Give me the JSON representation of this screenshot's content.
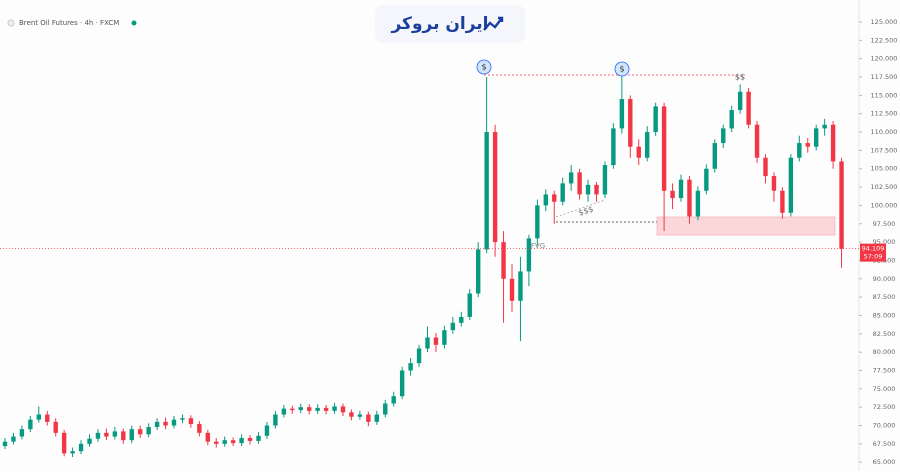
{
  "chart_data": {
    "type": "candlestick",
    "title": "Brent Oil Futures · 4h · FXCM",
    "brand": "ایران بروکر",
    "annotations": [
      "$",
      "$",
      "$$",
      "$$$",
      "FVG"
    ],
    "up_color": "#089981",
    "down_color": "#f23645",
    "last_price": 94.109,
    "countdown": "57:09",
    "ylim": [
      63.8,
      128
    ],
    "yticks": [
      {
        "value": 65,
        "label": "65.000"
      },
      {
        "value": 67.5,
        "label": "67.500"
      },
      {
        "value": 70,
        "label": "70.000"
      },
      {
        "value": 72.5,
        "label": "72.500"
      },
      {
        "value": 75,
        "label": "75.000"
      },
      {
        "value": 77.5,
        "label": "77.500"
      },
      {
        "value": 80,
        "label": "80.000"
      },
      {
        "value": 82.5,
        "label": "82.500"
      },
      {
        "value": 85,
        "label": "85.000"
      },
      {
        "value": 87.5,
        "label": "87.500"
      },
      {
        "value": 90,
        "label": "90.000"
      },
      {
        "value": 92.5,
        "label": "92.500"
      },
      {
        "value": 95,
        "label": "95.000"
      },
      {
        "value": 97.5,
        "label": "97.500"
      },
      {
        "value": 100,
        "label": "100.000"
      },
      {
        "value": 102.5,
        "label": "102.500"
      },
      {
        "value": 105,
        "label": "105.000"
      },
      {
        "value": 107.5,
        "label": "107.500"
      },
      {
        "value": 110,
        "label": "110.000"
      },
      {
        "value": 112.5,
        "label": "112.500"
      },
      {
        "value": 115,
        "label": "115.000"
      },
      {
        "value": 117.5,
        "label": "117.500"
      },
      {
        "value": 120,
        "label": "120.000"
      },
      {
        "value": 122.5,
        "label": "122.500"
      },
      {
        "value": 125,
        "label": "125.000"
      }
    ],
    "open": [
      67.2,
      67.8,
      68.5,
      69.5,
      70.8,
      71.5,
      70.5,
      69.0,
      66.2,
      66.5,
      67.5,
      68.2,
      69.0,
      68.5,
      69.2,
      68.0,
      69.5,
      68.8,
      69.8,
      70.5,
      70.0,
      70.8,
      71.0,
      70.2,
      69.0,
      67.8,
      67.5,
      68.0,
      67.6,
      68.3,
      67.9,
      68.6,
      70.0,
      71.5,
      72.3,
      72.1,
      72.5,
      72.0,
      72.4,
      72.0,
      72.6,
      71.8,
      71.2,
      71.5,
      70.5,
      71.5,
      73.0,
      74.0,
      77.5,
      78.5,
      80.5,
      82.0,
      81.0,
      83.0,
      84.0,
      84.8,
      88.0,
      94.0,
      110.0,
      95.0,
      90.0,
      87.0,
      91.0,
      95.5,
      100.0,
      101.5,
      100.5,
      103.0,
      104.5,
      101.5,
      102.8,
      101.5,
      105.5,
      110.5,
      114.5,
      108.0,
      106.5,
      110.0,
      113.5,
      102.0,
      101.0,
      103.5,
      98.5,
      102.0,
      105.0,
      108.5,
      110.5,
      113.0,
      115.5,
      111.0,
      106.5,
      104.0,
      102.0,
      99.0,
      106.5,
      108.5,
      108.0,
      110.5,
      111.0,
      106.0
    ],
    "high": [
      68.3,
      69.0,
      70.0,
      71.3,
      72.6,
      72.0,
      71.0,
      69.4,
      67.0,
      68.0,
      68.8,
      69.5,
      69.6,
      69.8,
      69.6,
      70.0,
      70.0,
      70.3,
      71.0,
      71.1,
      71.3,
      71.5,
      71.4,
      70.6,
      69.4,
      68.3,
      68.5,
      68.4,
      68.8,
      68.7,
      69.1,
      70.5,
      72.0,
      72.8,
      72.7,
      73.0,
      72.9,
      72.9,
      72.8,
      73.1,
      73.0,
      72.2,
      72.0,
      71.9,
      72.0,
      73.5,
      74.6,
      78.0,
      79.2,
      81.0,
      83.5,
      82.6,
      83.6,
      84.8,
      85.5,
      88.6,
      95.0,
      117.5,
      111.0,
      96.5,
      92.0,
      93.0,
      96.0,
      100.8,
      102.2,
      102.0,
      103.8,
      105.5,
      105.0,
      103.5,
      103.2,
      106.0,
      111.2,
      117.6,
      115.0,
      109.0,
      110.8,
      114.0,
      114.0,
      103.0,
      104.2,
      104.0,
      102.6,
      105.6,
      109.0,
      111.0,
      113.6,
      116.5,
      116.0,
      111.5,
      107.0,
      104.5,
      102.5,
      107.0,
      109.5,
      109.2,
      111.0,
      111.8,
      111.5,
      106.5
    ],
    "low": [
      66.8,
      67.4,
      68.1,
      69.1,
      70.4,
      70.0,
      68.5,
      65.8,
      65.7,
      66.1,
      67.1,
      67.8,
      68.0,
      68.1,
      67.5,
      67.6,
      68.3,
      68.4,
      69.4,
      69.5,
      69.6,
      70.3,
      69.7,
      68.5,
      67.3,
      67.0,
      67.1,
      67.2,
      67.2,
      67.4,
      67.5,
      68.2,
      69.6,
      71.1,
      71.6,
      71.7,
      71.5,
      71.6,
      71.5,
      71.6,
      71.3,
      70.7,
      70.8,
      69.9,
      70.1,
      71.1,
      72.6,
      73.6,
      76.8,
      78.0,
      80.0,
      80.0,
      80.5,
      82.5,
      83.5,
      84.4,
      87.5,
      93.5,
      93.0,
      84.0,
      85.5,
      81.5,
      89.0,
      94.5,
      99.2,
      97.5,
      100.0,
      102.0,
      100.8,
      100.5,
      100.5,
      101.0,
      105.0,
      109.8,
      106.5,
      105.5,
      106.0,
      109.5,
      96.5,
      99.5,
      100.5,
      97.5,
      98.0,
      101.5,
      104.5,
      107.8,
      110.0,
      112.5,
      110.5,
      105.8,
      103.0,
      100.5,
      98.2,
      98.5,
      106.0,
      107.2,
      107.5,
      109.5,
      105.0,
      91.5
    ],
    "close": [
      67.8,
      68.5,
      69.5,
      70.8,
      71.5,
      70.5,
      69.0,
      66.2,
      66.5,
      67.5,
      68.2,
      69.0,
      68.5,
      69.2,
      68.0,
      69.5,
      68.8,
      69.8,
      70.5,
      70.0,
      70.8,
      71.0,
      70.2,
      69.0,
      67.8,
      67.5,
      68.0,
      67.6,
      68.3,
      67.9,
      68.6,
      70.0,
      71.5,
      72.3,
      72.1,
      72.5,
      72.0,
      72.4,
      72.0,
      72.6,
      71.8,
      71.2,
      71.5,
      70.5,
      71.5,
      73.0,
      74.0,
      77.5,
      78.5,
      80.5,
      82.0,
      81.0,
      83.0,
      84.0,
      84.8,
      88.0,
      94.0,
      110.0,
      95.0,
      90.0,
      87.0,
      91.0,
      95.5,
      100.0,
      101.5,
      100.5,
      103.0,
      104.5,
      101.5,
      102.8,
      101.5,
      105.5,
      110.5,
      114.5,
      108.0,
      106.5,
      110.0,
      113.5,
      102.0,
      101.0,
      103.5,
      98.5,
      102.0,
      105.0,
      108.5,
      110.5,
      113.0,
      115.5,
      111.0,
      106.5,
      104.0,
      102.0,
      99.0,
      106.5,
      108.5,
      108.0,
      110.5,
      111.0,
      106.0,
      94.1
    ]
  }
}
